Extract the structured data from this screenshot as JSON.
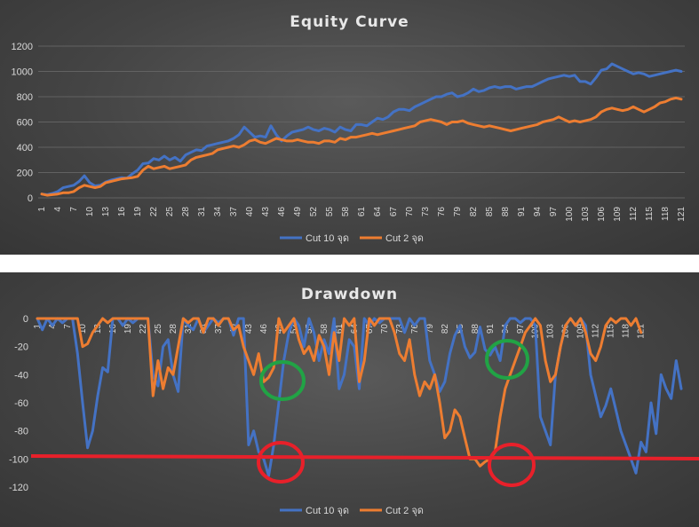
{
  "colors": {
    "series1": "#4472c4",
    "series2": "#ed7d31",
    "annotation_red": "#e8202a",
    "annotation_green": "#21a345"
  },
  "chart_data": [
    {
      "type": "line",
      "title": "Equity Curve",
      "ylim": [
        0,
        1200
      ],
      "yticks": [
        0,
        200,
        400,
        600,
        800,
        1000,
        1200
      ],
      "x_tick_labels": [
        "1",
        "4",
        "7",
        "10",
        "13",
        "16",
        "19",
        "22",
        "25",
        "28",
        "31",
        "34",
        "37",
        "40",
        "43",
        "46",
        "49",
        "52",
        "55",
        "58",
        "61",
        "64",
        "67",
        "70",
        "73",
        "76",
        "79",
        "82",
        "85",
        "88",
        "91",
        "94",
        "97",
        "100",
        "103",
        "106",
        "109",
        "112",
        "115",
        "118",
        "121"
      ],
      "grid": true,
      "legend_position": "bottom",
      "series": [
        {
          "name": "Cut 10 จุด",
          "values": [
            30,
            25,
            35,
            50,
            80,
            90,
            100,
            130,
            175,
            120,
            95,
            100,
            125,
            140,
            150,
            160,
            155,
            190,
            220,
            270,
            275,
            310,
            300,
            330,
            300,
            320,
            290,
            340,
            360,
            380,
            375,
            410,
            420,
            430,
            440,
            450,
            470,
            500,
            560,
            520,
            480,
            490,
            480,
            570,
            500,
            450,
            490,
            520,
            530,
            540,
            560,
            540,
            530,
            550,
            540,
            520,
            560,
            540,
            530,
            580,
            580,
            570,
            600,
            630,
            620,
            640,
            680,
            700,
            700,
            690,
            720,
            740,
            760,
            780,
            800,
            800,
            820,
            830,
            800,
            810,
            830,
            860,
            840,
            850,
            870,
            880,
            870,
            880,
            880,
            860,
            870,
            880,
            880,
            900,
            920,
            940,
            950,
            960,
            970,
            960,
            970,
            920,
            920,
            900,
            950,
            1010,
            1020,
            1060,
            1040,
            1020,
            1000,
            980,
            990,
            980,
            960,
            970,
            980,
            990,
            1000,
            1010,
            1000
          ]
        },
        {
          "name": "Cut 2 จุด",
          "values": [
            30,
            20,
            25,
            30,
            40,
            40,
            50,
            80,
            100,
            90,
            80,
            90,
            120,
            130,
            140,
            150,
            155,
            160,
            170,
            220,
            250,
            230,
            240,
            250,
            230,
            240,
            250,
            260,
            300,
            320,
            330,
            340,
            350,
            380,
            390,
            400,
            410,
            400,
            420,
            450,
            460,
            440,
            430,
            450,
            470,
            460,
            450,
            450,
            460,
            450,
            440,
            440,
            430,
            450,
            450,
            440,
            470,
            460,
            480,
            480,
            490,
            500,
            510,
            500,
            510,
            520,
            530,
            540,
            550,
            560,
            570,
            600,
            610,
            620,
            610,
            600,
            580,
            600,
            600,
            610,
            590,
            580,
            570,
            560,
            570,
            560,
            550,
            540,
            530,
            540,
            550,
            560,
            570,
            580,
            600,
            610,
            620,
            640,
            620,
            600,
            610,
            600,
            610,
            620,
            640,
            680,
            700,
            710,
            700,
            690,
            700,
            720,
            700,
            680,
            700,
            720,
            750,
            760,
            780,
            790,
            780
          ]
        }
      ]
    },
    {
      "type": "line",
      "title": "Drawdown",
      "ylim": [
        -120,
        0
      ],
      "yticks": [
        0,
        -20,
        -40,
        -60,
        -80,
        -100,
        -120
      ],
      "x_tick_labels": [
        "1",
        "4",
        "7",
        "10",
        "13",
        "16",
        "19",
        "22",
        "25",
        "28",
        "31",
        "34",
        "37",
        "40",
        "43",
        "46",
        "49",
        "52",
        "55",
        "58",
        "61",
        "64",
        "67",
        "70",
        "73",
        "76",
        "79",
        "82",
        "85",
        "88",
        "91",
        "94",
        "97",
        "100",
        "103",
        "106",
        "109",
        "112",
        "115",
        "118",
        "121"
      ],
      "grid": false,
      "legend_position": "bottom",
      "series": [
        {
          "name": "Cut 10 จุด",
          "values": [
            0,
            -8,
            0,
            -5,
            0,
            -3,
            0,
            0,
            -25,
            -60,
            -92,
            -80,
            -55,
            -35,
            -38,
            0,
            0,
            -5,
            0,
            -3,
            0,
            0,
            0,
            -40,
            -48,
            -20,
            -15,
            -40,
            -52,
            0,
            -5,
            -8,
            0,
            -10,
            -5,
            0,
            -3,
            0,
            0,
            -12,
            0,
            0,
            -90,
            -80,
            -95,
            -100,
            -112,
            -90,
            -60,
            -30,
            -10,
            0,
            -5,
            -20,
            0,
            -10,
            -30,
            -15,
            -25,
            0,
            -50,
            -40,
            -15,
            -20,
            -50,
            0,
            -5,
            0,
            -3,
            0,
            0,
            0,
            0,
            -10,
            0,
            -5,
            0,
            0,
            -30,
            -40,
            -52,
            -45,
            -25,
            -12,
            -5,
            -20,
            -28,
            -24,
            -6,
            -22,
            -26,
            -20,
            -30,
            -5,
            0,
            0,
            -3,
            0,
            0,
            -5,
            -70,
            -80,
            -90,
            -40,
            -20,
            -5,
            0,
            -5,
            0,
            -5,
            -40,
            -55,
            -70,
            -62,
            -50,
            -65,
            -80,
            -90,
            -100,
            -110,
            -88,
            -95,
            -60,
            -82,
            -40,
            -50,
            -57,
            -30,
            -50
          ]
        },
        {
          "name": "Cut 2 จุด",
          "values": [
            0,
            0,
            0,
            0,
            0,
            0,
            0,
            0,
            0,
            -20,
            -18,
            -10,
            -5,
            0,
            -3,
            0,
            0,
            0,
            0,
            0,
            0,
            0,
            0,
            -55,
            -30,
            -50,
            -35,
            -40,
            -20,
            0,
            -3,
            0,
            0,
            -10,
            0,
            0,
            -5,
            0,
            0,
            -8,
            -5,
            -20,
            -30,
            -40,
            -25,
            -45,
            -42,
            -35,
            0,
            -10,
            -5,
            0,
            -15,
            -25,
            -20,
            -30,
            -12,
            -20,
            -40,
            -10,
            -30,
            0,
            -5,
            0,
            -45,
            -30,
            0,
            -5,
            0,
            0,
            0,
            -10,
            -25,
            -30,
            -15,
            -40,
            -55,
            -45,
            -50,
            -40,
            -60,
            -85,
            -80,
            -65,
            -70,
            -85,
            -100,
            -100,
            -105,
            -102,
            -100,
            -95,
            -70,
            -50,
            -40,
            -30,
            -20,
            -10,
            -5,
            0,
            -5,
            -30,
            -45,
            -40,
            -20,
            -5,
            0,
            -5,
            0,
            -10,
            -25,
            -30,
            -20,
            -5,
            0,
            -3,
            0,
            0,
            -5,
            0,
            -10
          ]
        }
      ]
    }
  ]
}
